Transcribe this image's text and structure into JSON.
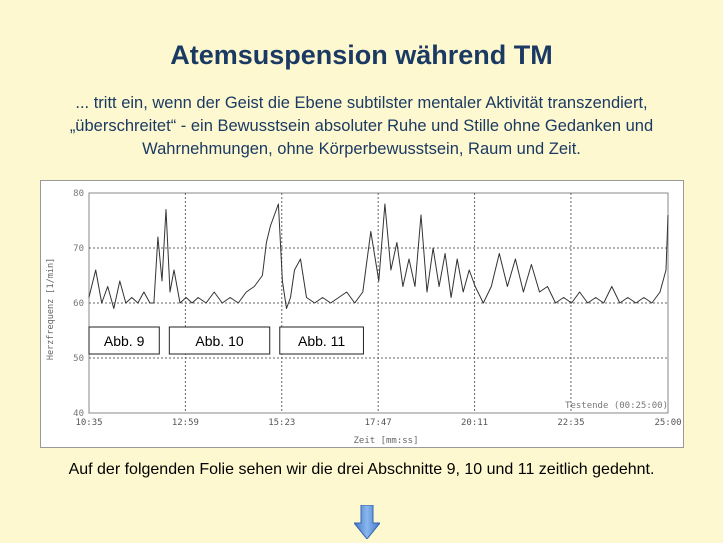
{
  "slide": {
    "title": "Atemsuspension während TM",
    "subtitle": "... tritt ein, wenn der Geist die Ebene subtilster mentaler Aktivität transzendiert, „überschreitet“ - ein Bewusstsein absoluter Ruhe und Stille ohne Gedanken und Wahrnehmungen, ohne Körperbewusstsein, Raum und Zeit.",
    "caption": "Auf der folgenden Folie sehen wir die drei Abschnitte 9, 10 und 11 zeitlich gedehnt.",
    "arrow_icon": "down-arrow-icon",
    "colors": {
      "title": "#1b3a63",
      "background": "#fdf8cf",
      "arrow": "#5b8fd6"
    }
  },
  "chart_data": {
    "type": "line",
    "ylabel": "Herzfrequenz [1/min]",
    "xlabel": "Zeit [mm:ss]",
    "ylim": [
      40,
      80
    ],
    "yticks": [
      "40",
      "50",
      "60",
      "70",
      "80"
    ],
    "xticks": [
      "10:35",
      "12:59",
      "15:23",
      "17:47",
      "20:11",
      "22:35",
      "25:00"
    ],
    "grid": true,
    "annotation": "Testende (00:25:00)",
    "line_color": "#333333",
    "segments": [
      {
        "label": "Abb. 9",
        "from": "10:35",
        "to": "12:20"
      },
      {
        "label": "Abb.  10",
        "from": "12:35",
        "to": "15:05"
      },
      {
        "label": "Abb.  11",
        "from": "15:20",
        "to": "17:25"
      }
    ],
    "series": [
      {
        "x_minutes": [
          10.58,
          10.75,
          10.9,
          11.05,
          11.2,
          11.35,
          11.5,
          11.65,
          11.8,
          11.95,
          12.1,
          12.2,
          12.3,
          12.4,
          12.5,
          12.6,
          12.7,
          12.85,
          13.0,
          13.15,
          13.3,
          13.5,
          13.7,
          13.9,
          14.1,
          14.3,
          14.5,
          14.7,
          14.9,
          15.0,
          15.1,
          15.2,
          15.3,
          15.4,
          15.5,
          15.6,
          15.7,
          15.85,
          16.0,
          16.2,
          16.4,
          16.6,
          16.8,
          17.0,
          17.2,
          17.4,
          17.6,
          17.8,
          17.95,
          18.1,
          18.25,
          18.4,
          18.55,
          18.7,
          18.85,
          19.0,
          19.15,
          19.3,
          19.45,
          19.6,
          19.75,
          19.9,
          20.05,
          20.2,
          20.4,
          20.6,
          20.8,
          21.0,
          21.2,
          21.4,
          21.6,
          21.8,
          22.0,
          22.2,
          22.4,
          22.6,
          22.8,
          23.0,
          23.2,
          23.4,
          23.6,
          23.8,
          24.0,
          24.2,
          24.4,
          24.6,
          24.8,
          24.95,
          25.0
        ],
        "values": [
          61,
          66,
          60,
          63,
          59,
          64,
          60,
          61,
          60,
          62,
          60,
          60,
          72,
          64,
          77,
          62,
          66,
          60,
          61,
          60,
          61,
          60,
          62,
          60,
          61,
          60,
          62,
          63,
          65,
          71,
          74,
          76,
          78,
          64,
          59,
          61,
          66,
          68,
          61,
          60,
          61,
          60,
          61,
          62,
          60,
          62,
          73,
          64,
          78,
          66,
          71,
          63,
          68,
          63,
          76,
          62,
          70,
          63,
          69,
          61,
          68,
          62,
          66,
          63,
          60,
          63,
          69,
          63,
          68,
          62,
          67,
          62,
          63,
          60,
          61,
          60,
          62,
          60,
          61,
          60,
          63,
          60,
          61,
          60,
          61,
          60,
          62,
          66,
          76
        ]
      }
    ]
  }
}
